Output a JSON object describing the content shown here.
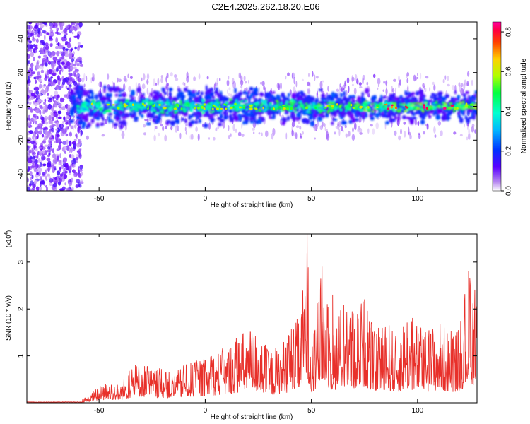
{
  "title": "C2E4.2025.262.18.20.E06",
  "chart_data": [
    {
      "type": "heatmap",
      "xlabel": "Height of straight line (km)",
      "ylabel": "Frequency (Hz)",
      "xlim": [
        -84,
        128
      ],
      "ylim": [
        -50,
        50
      ],
      "xticks": [
        -50,
        0,
        50,
        100
      ],
      "yticks": [
        -40,
        -20,
        0,
        20,
        40
      ],
      "colorbar": {
        "label": "Normalized spectral amplitude",
        "range": [
          0.0,
          0.85
        ],
        "ticks": [
          0.0,
          0.2,
          0.4,
          0.6,
          0.8
        ],
        "colormap": "rainbow (purple to red)"
      },
      "features": {
        "noise_region_x": [
          -84,
          -60
        ],
        "band_center_hz": 0,
        "band_halfwidth_hz": 6,
        "peak_amplitude_x": [
          95,
          105
        ]
      }
    },
    {
      "type": "line",
      "xlabel": "Height of straight line (km)",
      "ylabel": "SNR (10 * v/v)",
      "y_multiplier": "(x10^4)",
      "xlim": [
        -84,
        128
      ],
      "ylim": [
        0,
        3.6
      ],
      "xticks": [
        -50,
        0,
        50,
        100
      ],
      "yticks": [
        1,
        2,
        3
      ],
      "series": [
        {
          "color": "#e8302a",
          "x": [
            -84,
            -60,
            -55,
            -50,
            -45,
            -40,
            -35,
            -30,
            -25,
            -20,
            -15,
            -10,
            -5,
            0,
            5,
            10,
            15,
            20,
            25,
            30,
            35,
            40,
            45,
            48,
            50,
            55,
            60,
            65,
            70,
            75,
            80,
            85,
            90,
            95,
            100,
            105,
            110,
            115,
            120,
            124,
            128
          ],
          "y": [
            0.01,
            0.02,
            0.15,
            0.35,
            0.45,
            0.4,
            0.75,
            0.9,
            0.7,
            0.75,
            0.6,
            0.8,
            0.9,
            0.95,
            1.1,
            1.2,
            1.45,
            1.6,
            1.55,
            1.1,
            1.25,
            1.55,
            1.9,
            3.6,
            1.2,
            2.9,
            1.6,
            2.2,
            2.0,
            2.3,
            1.5,
            1.9,
            1.4,
            2.0,
            1.7,
            1.6,
            1.8,
            1.5,
            1.7,
            2.8,
            2.3
          ]
        }
      ]
    }
  ]
}
